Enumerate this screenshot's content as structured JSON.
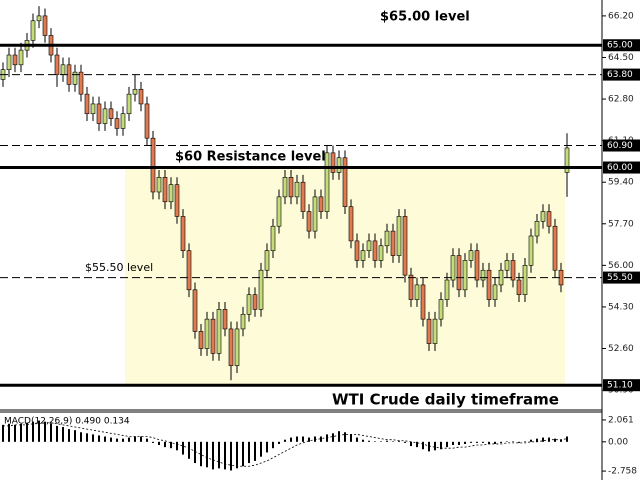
{
  "chart_data": {
    "type": "candlestick",
    "ylim": [
      50.29,
      66.85
    ],
    "yticks": [
      {
        "value": 66.2,
        "label": "66.20"
      },
      {
        "value": 64.5,
        "label": "64.50"
      },
      {
        "value": 62.8,
        "label": "62.80"
      },
      {
        "value": 61.1,
        "label": "61.10"
      },
      {
        "value": 59.4,
        "label": "59.40"
      },
      {
        "value": 57.7,
        "label": "57.70"
      },
      {
        "value": 56,
        "label": "56.00"
      },
      {
        "value": 54.3,
        "label": "54.30"
      },
      {
        "value": 52.6,
        "label": "52.60"
      },
      {
        "value": 50.9,
        "label": "50.90"
      }
    ],
    "levels": [
      {
        "value": 65,
        "label": "65.00",
        "style": "solid"
      },
      {
        "value": 63.8,
        "label": "63.80",
        "style": "dashed"
      },
      {
        "value": 60.9,
        "label": "60.90",
        "style": "dashed"
      },
      {
        "value": 60,
        "label": "60.00",
        "style": "solid"
      },
      {
        "value": 55.5,
        "label": "55.50",
        "style": "dashed"
      },
      {
        "value": 51.1,
        "label": "51.10",
        "style": "solid"
      }
    ],
    "zone": [
      51.1,
      60
    ],
    "zone_color": "#fdfbd8",
    "up_color": "#c5dc7a",
    "down_color": "#e07a50",
    "annotations": [
      "$65.00 level",
      "$60 Resistance level",
      "$55.50 level",
      "WTI Crude daily timeframe"
    ],
    "ohlc": [
      [
        63.6,
        64.3,
        63.3,
        64.0
      ],
      [
        64.0,
        64.9,
        63.7,
        64.6
      ],
      [
        64.6,
        64.9,
        63.9,
        64.2
      ],
      [
        64.2,
        65.1,
        63.9,
        64.8
      ],
      [
        64.8,
        65.5,
        64.5,
        65.2
      ],
      [
        65.2,
        66.3,
        64.9,
        66.0
      ],
      [
        66.0,
        66.6,
        65.7,
        66.2
      ],
      [
        66.2,
        66.5,
        65.1,
        65.4
      ],
      [
        65.4,
        65.7,
        64.3,
        64.6
      ],
      [
        64.6,
        64.9,
        63.3,
        63.8
      ],
      [
        63.8,
        64.5,
        63.5,
        64.2
      ],
      [
        64.2,
        64.5,
        63.1,
        63.4
      ],
      [
        63.4,
        64.2,
        63.1,
        63.9
      ],
      [
        63.9,
        64.2,
        62.7,
        63.0
      ],
      [
        63.0,
        63.3,
        61.9,
        62.2
      ],
      [
        62.2,
        62.9,
        61.9,
        62.6
      ],
      [
        62.6,
        62.9,
        61.5,
        61.8
      ],
      [
        61.8,
        62.7,
        61.5,
        62.4
      ],
      [
        62.4,
        62.7,
        61.7,
        62.0
      ],
      [
        62.0,
        62.3,
        61.3,
        61.6
      ],
      [
        61.6,
        62.5,
        61.3,
        62.2
      ],
      [
        62.2,
        63.3,
        61.9,
        63.0
      ],
      [
        63.0,
        63.8,
        62.7,
        63.2
      ],
      [
        63.2,
        63.5,
        62.3,
        62.6
      ],
      [
        62.6,
        62.9,
        60.9,
        61.2
      ],
      [
        61.2,
        61.5,
        58.7,
        59.0
      ],
      [
        59.0,
        59.9,
        58.7,
        59.6
      ],
      [
        59.6,
        59.9,
        58.3,
        58.6
      ],
      [
        58.6,
        59.6,
        58.3,
        59.3
      ],
      [
        59.3,
        59.6,
        57.7,
        58.0
      ],
      [
        58.0,
        58.3,
        56.3,
        56.6
      ],
      [
        56.6,
        56.9,
        54.7,
        55.0
      ],
      [
        55.0,
        55.3,
        53.0,
        53.3
      ],
      [
        53.3,
        53.6,
        52.3,
        52.6
      ],
      [
        52.6,
        54.1,
        52.3,
        53.8
      ],
      [
        53.8,
        54.1,
        52.1,
        52.4
      ],
      [
        52.4,
        54.5,
        52.1,
        54.2
      ],
      [
        54.2,
        54.5,
        53.1,
        53.4
      ],
      [
        53.4,
        53.7,
        51.3,
        51.9
      ],
      [
        51.9,
        53.7,
        51.6,
        53.4
      ],
      [
        53.4,
        54.3,
        53.1,
        54.0
      ],
      [
        54.0,
        55.1,
        53.7,
        54.8
      ],
      [
        54.8,
        55.1,
        53.9,
        54.2
      ],
      [
        54.2,
        56.1,
        53.9,
        55.8
      ],
      [
        55.8,
        56.9,
        55.5,
        56.6
      ],
      [
        56.6,
        57.9,
        56.3,
        57.6
      ],
      [
        57.6,
        59.1,
        57.3,
        58.8
      ],
      [
        58.8,
        59.9,
        58.5,
        59.6
      ],
      [
        59.6,
        59.9,
        58.5,
        58.8
      ],
      [
        58.8,
        59.7,
        58.5,
        59.4
      ],
      [
        59.4,
        59.7,
        57.9,
        58.2
      ],
      [
        58.2,
        58.5,
        57.1,
        57.4
      ],
      [
        57.4,
        59.1,
        57.1,
        58.8
      ],
      [
        58.8,
        59.1,
        57.9,
        58.2
      ],
      [
        58.2,
        60.9,
        57.9,
        60.6
      ],
      [
        60.6,
        60.9,
        59.5,
        59.8
      ],
      [
        59.8,
        60.7,
        59.5,
        60.4
      ],
      [
        60.4,
        60.7,
        58.1,
        58.4
      ],
      [
        58.4,
        58.7,
        56.7,
        57.0
      ],
      [
        57.0,
        57.3,
        55.9,
        56.2
      ],
      [
        56.2,
        56.9,
        55.9,
        56.6
      ],
      [
        56.6,
        57.3,
        56.3,
        57.0
      ],
      [
        57.0,
        57.3,
        55.9,
        56.2
      ],
      [
        56.2,
        57.1,
        55.9,
        56.8
      ],
      [
        56.8,
        57.7,
        56.5,
        57.4
      ],
      [
        57.4,
        57.7,
        56.1,
        56.4
      ],
      [
        56.4,
        58.3,
        56.1,
        58.0
      ],
      [
        58.0,
        58.3,
        55.3,
        55.6
      ],
      [
        55.6,
        55.9,
        54.3,
        54.6
      ],
      [
        54.6,
        55.5,
        54.3,
        55.2
      ],
      [
        55.2,
        55.5,
        53.5,
        53.8
      ],
      [
        53.8,
        54.1,
        52.5,
        52.8
      ],
      [
        52.8,
        54.1,
        52.5,
        53.8
      ],
      [
        53.8,
        54.9,
        53.5,
        54.6
      ],
      [
        54.6,
        55.7,
        54.3,
        55.4
      ],
      [
        55.4,
        56.7,
        55.1,
        56.4
      ],
      [
        56.4,
        56.7,
        54.7,
        55.0
      ],
      [
        55.0,
        56.5,
        54.7,
        56.2
      ],
      [
        56.2,
        56.9,
        55.9,
        56.6
      ],
      [
        56.6,
        56.9,
        55.1,
        55.4
      ],
      [
        55.4,
        56.1,
        55.1,
        55.8
      ],
      [
        55.8,
        56.1,
        54.3,
        54.6
      ],
      [
        54.6,
        55.5,
        54.3,
        55.2
      ],
      [
        55.2,
        56.1,
        54.9,
        55.8
      ],
      [
        55.8,
        56.5,
        55.5,
        56.2
      ],
      [
        56.2,
        56.5,
        55.1,
        55.4
      ],
      [
        55.4,
        55.7,
        54.5,
        54.8
      ],
      [
        54.8,
        56.3,
        54.5,
        56.0
      ],
      [
        56.0,
        57.5,
        55.7,
        57.2
      ],
      [
        57.2,
        58.1,
        56.9,
        57.8
      ],
      [
        57.8,
        58.5,
        57.5,
        58.2
      ],
      [
        58.2,
        58.5,
        57.3,
        57.6
      ],
      [
        57.6,
        57.9,
        55.5,
        55.8
      ],
      [
        55.8,
        56.1,
        54.9,
        55.2
      ],
      [
        59.8,
        61.4,
        58.8,
        60.8
      ]
    ],
    "macd": {
      "label": "MACD(12,26,9) 0.490 0.134",
      "ylim": [
        -3.41,
        2.81
      ],
      "yticks": [
        2.061,
        {
          "value": 0,
          "label": "0.00"
        },
        -2.758
      ],
      "histogram": [
        1.6,
        1.7,
        1.6,
        1.7,
        1.8,
        1.9,
        2.0,
        1.9,
        1.7,
        1.5,
        1.4,
        1.2,
        1.1,
        0.9,
        0.8,
        0.7,
        0.6,
        0.5,
        0.4,
        0.3,
        0.3,
        0.4,
        0.5,
        0.5,
        0.3,
        -0.1,
        -0.3,
        -0.5,
        -0.6,
        -0.8,
        -1.2,
        -1.6,
        -2.0,
        -2.3,
        -2.4,
        -2.6,
        -2.5,
        -2.6,
        -2.7,
        -2.5,
        -2.3,
        -2.0,
        -1.8,
        -1.4,
        -1.0,
        -0.6,
        -0.2,
        0.2,
        0.4,
        0.5,
        0.5,
        0.4,
        0.5,
        0.5,
        0.7,
        0.8,
        1.0,
        0.9,
        0.7,
        0.4,
        0.2,
        0.1,
        0.0,
        0.0,
        0.1,
        0.0,
        0.1,
        -0.1,
        -0.4,
        -0.5,
        -0.7,
        -0.9,
        -0.8,
        -0.7,
        -0.5,
        -0.3,
        -0.3,
        -0.2,
        -0.1,
        -0.1,
        -0.1,
        -0.2,
        -0.2,
        -0.1,
        0.0,
        0.0,
        -0.1,
        0.0,
        0.2,
        0.3,
        0.4,
        0.4,
        0.3,
        0.2,
        0.5
      ],
      "signal": [
        1.5,
        1.5,
        1.6,
        1.6,
        1.6,
        1.7,
        1.7,
        1.8,
        1.8,
        1.7,
        1.6,
        1.5,
        1.4,
        1.3,
        1.2,
        1.1,
        1.0,
        0.9,
        0.8,
        0.7,
        0.6,
        0.5,
        0.5,
        0.5,
        0.5,
        0.4,
        0.2,
        0.1,
        -0.1,
        -0.2,
        -0.4,
        -0.6,
        -0.9,
        -1.2,
        -1.5,
        -1.7,
        -1.9,
        -2.1,
        -2.2,
        -2.3,
        -2.3,
        -2.3,
        -2.2,
        -2.0,
        -1.8,
        -1.5,
        -1.2,
        -0.9,
        -0.6,
        -0.3,
        -0.1,
        0.1,
        0.2,
        0.3,
        0.4,
        0.5,
        0.6,
        0.7,
        0.7,
        0.7,
        0.6,
        0.5,
        0.4,
        0.3,
        0.2,
        0.2,
        0.1,
        0.1,
        0.0,
        -0.1,
        -0.2,
        -0.4,
        -0.5,
        -0.6,
        -0.6,
        -0.6,
        -0.5,
        -0.5,
        -0.4,
        -0.3,
        -0.3,
        -0.2,
        -0.2,
        -0.2,
        -0.1,
        -0.1,
        -0.1,
        -0.1,
        0.0,
        0.0,
        0.1,
        0.2,
        0.2,
        0.2,
        0.3
      ]
    }
  }
}
